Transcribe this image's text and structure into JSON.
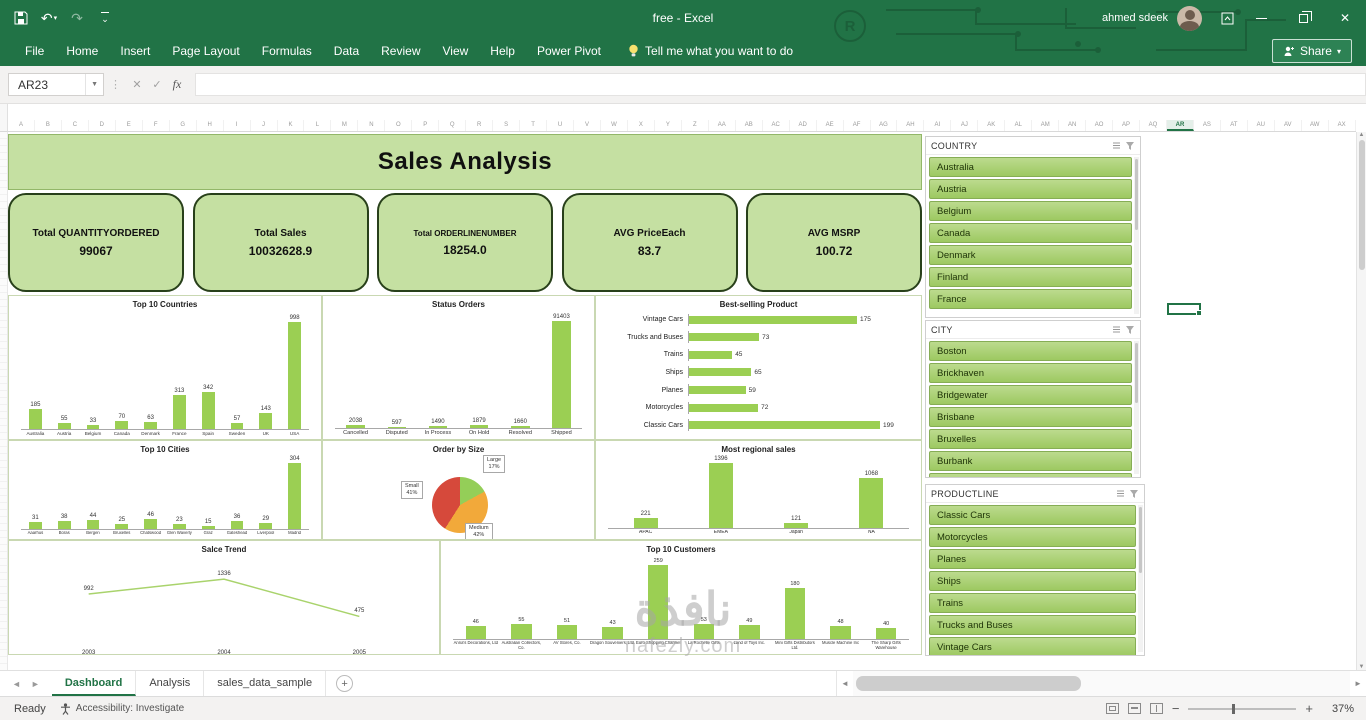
{
  "title_bar": {
    "title": "free  -  Excel",
    "user_name": "ahmed sdeek"
  },
  "ribbon": {
    "tabs": [
      "File",
      "Home",
      "Insert",
      "Page Layout",
      "Formulas",
      "Data",
      "Review",
      "View",
      "Help",
      "Power Pivot"
    ],
    "tell_me": "Tell me what you want to do",
    "share_label": "Share"
  },
  "formula_bar": {
    "name_box": "AR23",
    "fx": "fx"
  },
  "grid": {
    "selected_cell": "AR23",
    "selected_column": "AR",
    "row_count": 76,
    "column_letters": [
      "A",
      "B",
      "C",
      "D",
      "E",
      "F",
      "G",
      "H",
      "I",
      "J",
      "K",
      "L",
      "M",
      "N",
      "O",
      "P",
      "Q",
      "R",
      "S",
      "T",
      "U",
      "V",
      "W",
      "X",
      "Y",
      "Z",
      "AA",
      "AB",
      "AC",
      "AD",
      "AE",
      "AF",
      "AG",
      "AH",
      "AI",
      "AJ",
      "AK",
      "AL",
      "AM",
      "AN",
      "AO",
      "AP",
      "AQ",
      "AR",
      "AS",
      "AT",
      "AU",
      "AV",
      "AW",
      "AX"
    ]
  },
  "dashboard": {
    "title": "Sales Analysis",
    "kpis": [
      {
        "label": "Total QUANTITYORDERED",
        "value": "99067"
      },
      {
        "label": "Total Sales",
        "value": "10032628.9"
      },
      {
        "label": "Total ORDERLINENUMBER",
        "value": "18254.0"
      },
      {
        "label": "AVG PriceEach",
        "value": "83.7"
      },
      {
        "label": "AVG MSRP",
        "value": "100.72"
      }
    ]
  },
  "chart_data": [
    {
      "id": "top10_countries",
      "type": "bar",
      "title": "Top 10 Countries",
      "categories": [
        "Australia",
        "Austria",
        "Belgium",
        "Canada",
        "Denmark",
        "France",
        "Spain",
        "Sweden",
        "UK",
        "USA"
      ],
      "values": [
        185,
        55,
        33,
        70,
        63,
        313,
        342,
        57,
        143,
        998
      ],
      "ylim": [
        0,
        1100
      ],
      "bar_color": "#9bcf53"
    },
    {
      "id": "status_orders",
      "type": "bar",
      "title": "Status Orders",
      "categories": [
        "Cancelled",
        "Disputed",
        "In Process",
        "On Hold",
        "Resolved",
        "Shipped"
      ],
      "values": [
        2038,
        597,
        1490,
        1879,
        1660,
        91403
      ],
      "ylim": [
        0,
        100000
      ],
      "bar_color": "#9bcf53"
    },
    {
      "id": "best_selling",
      "type": "hbar",
      "title": "Best-selling Product",
      "categories": [
        "Vintage Cars",
        "Trucks and Buses",
        "Trains",
        "Ships",
        "Planes",
        "Motorcycles",
        "Classic Cars"
      ],
      "values": [
        175,
        73,
        45,
        65,
        59,
        72,
        199
      ],
      "xlim": [
        0,
        225
      ],
      "bar_color": "#9bcf53"
    },
    {
      "id": "top10_cities",
      "type": "bar",
      "title": "Top 10 Cities",
      "categories": [
        "Aaarhus",
        "Boras",
        "Bergen",
        "Bruxelles",
        "Chatswood",
        "Glen Waverly",
        "Graz",
        "Gateshead",
        "Liverpool",
        "Madrid"
      ],
      "values": [
        31,
        38,
        44,
        25,
        46,
        23,
        15,
        36,
        29,
        304
      ],
      "ylim": [
        0,
        335
      ],
      "bar_color": "#9bcf53"
    },
    {
      "id": "order_by_size",
      "type": "pie",
      "title": "Order by Size",
      "slices": [
        {
          "label": "Large",
          "pct": 17,
          "color": "#94ce58"
        },
        {
          "label": "Medium",
          "pct": 42,
          "color": "#f2a93a"
        },
        {
          "label": "Small",
          "pct": 41,
          "color": "#d6493b"
        }
      ]
    },
    {
      "id": "regional_sales",
      "type": "bar",
      "title": "Most regional sales",
      "categories": [
        "APAC",
        "EMEA",
        "Japan",
        "NA"
      ],
      "values": [
        221,
        1396,
        121,
        1068
      ],
      "ylim": [
        0,
        1550
      ],
      "bar_color": "#9bcf53"
    },
    {
      "id": "sales_trend",
      "type": "line",
      "title": "Salce Trend",
      "categories": [
        "2003",
        "2004",
        "2005"
      ],
      "values": [
        992,
        1336,
        475
      ],
      "ylim": [
        0,
        1500
      ],
      "line_color": "#a9d36c"
    },
    {
      "id": "top10_customers",
      "type": "bar",
      "title": "Top 10 Customers",
      "categories": [
        "Anna's Decorations, Ltd",
        "Australian Collectors, Co.",
        "AV Stores, Co.",
        "Dragon Souveniers, Ltd.",
        "Euro Shopping Channel",
        "La Rochelle Gifts",
        "Land of Toys Inc.",
        "Mini Gifts Distributors Ltd.",
        "Muscle Machine Inc",
        "The Sharp Gifts Warehouse"
      ],
      "values": [
        46,
        55,
        51,
        43,
        259,
        53,
        49,
        180,
        48,
        40
      ],
      "ylim": [
        0,
        290
      ],
      "bar_color": "#9bcf53"
    }
  ],
  "slicers": [
    {
      "title": "COUNTRY",
      "items": [
        "Australia",
        "Austria",
        "Belgium",
        "Canada",
        "Denmark",
        "Finland",
        "France"
      ]
    },
    {
      "title": "CITY",
      "items": [
        "Boston",
        "Brickhaven",
        "Bridgewater",
        "Brisbane",
        "Bruxelles",
        "Burbank",
        "Burlingame"
      ]
    },
    {
      "title": "PRODUCTLINE",
      "items": [
        "Classic Cars",
        "Motorcycles",
        "Planes",
        "Ships",
        "Trains",
        "Trucks and Buses",
        "Vintage Cars"
      ]
    }
  ],
  "sheet_tabs": [
    {
      "label": "Dashboard",
      "active": true
    },
    {
      "label": "Analysis",
      "active": false
    },
    {
      "label": "sales_data_sample",
      "active": false
    }
  ],
  "status_bar": {
    "ready": "Ready",
    "accessibility": "Accessibility: Investigate",
    "zoom_level": "37%"
  },
  "watermark": {
    "line1": "نافذة",
    "line2": "nafezly.com"
  },
  "colors": {
    "excel_green": "#217346",
    "dashboard_green": "#c5e0a2",
    "bar_green": "#9bcf53"
  }
}
